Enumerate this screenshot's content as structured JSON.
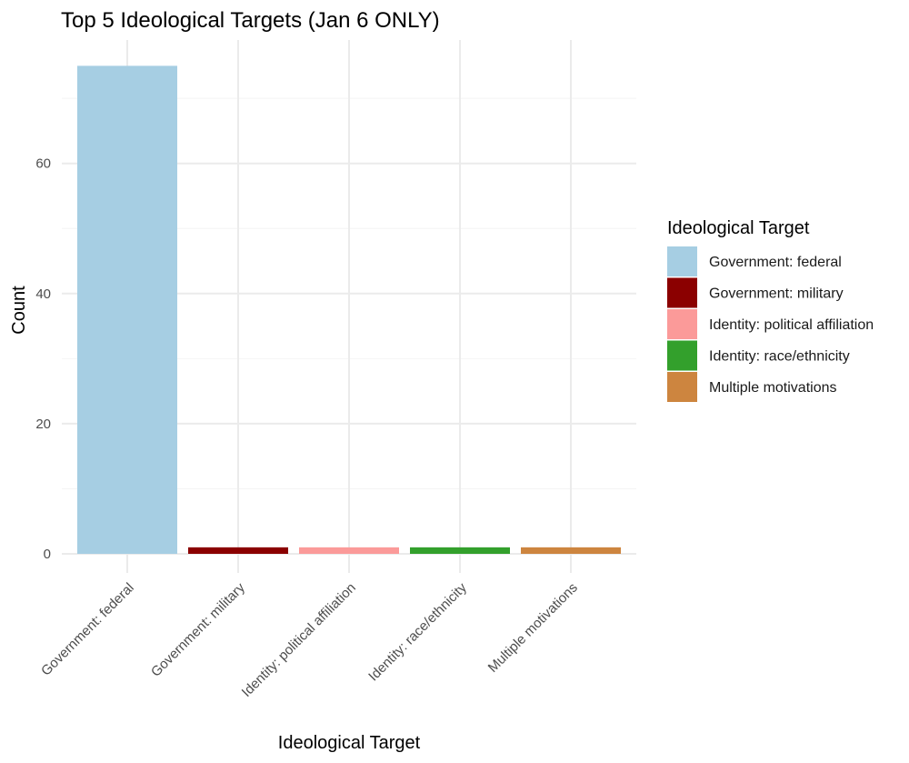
{
  "chart_data": {
    "type": "bar",
    "title": "Top 5 Ideological Targets (Jan 6 ONLY)",
    "xlabel": "Ideological Target",
    "ylabel": "Count",
    "categories": [
      "Government: federal",
      "Government: military",
      "Identity: political affiliation",
      "Identity: race/ethnicity",
      "Multiple motivations"
    ],
    "values": [
      75,
      1,
      1,
      1,
      1
    ],
    "colors": [
      "#a6cee3",
      "#8b0000",
      "#fb9a99",
      "#33a02c",
      "#cd853f"
    ],
    "ylim": [
      0,
      78.75
    ],
    "yticks": [
      0,
      20,
      40,
      60
    ],
    "yticks_minor": [
      10,
      30,
      50,
      70
    ],
    "grid": true,
    "legend": {
      "title": "Ideological Target",
      "placement": "right",
      "entries": [
        "Government: federal",
        "Government: military",
        "Identity: political affiliation",
        "Identity: race/ethnicity",
        "Multiple motivations"
      ]
    }
  }
}
